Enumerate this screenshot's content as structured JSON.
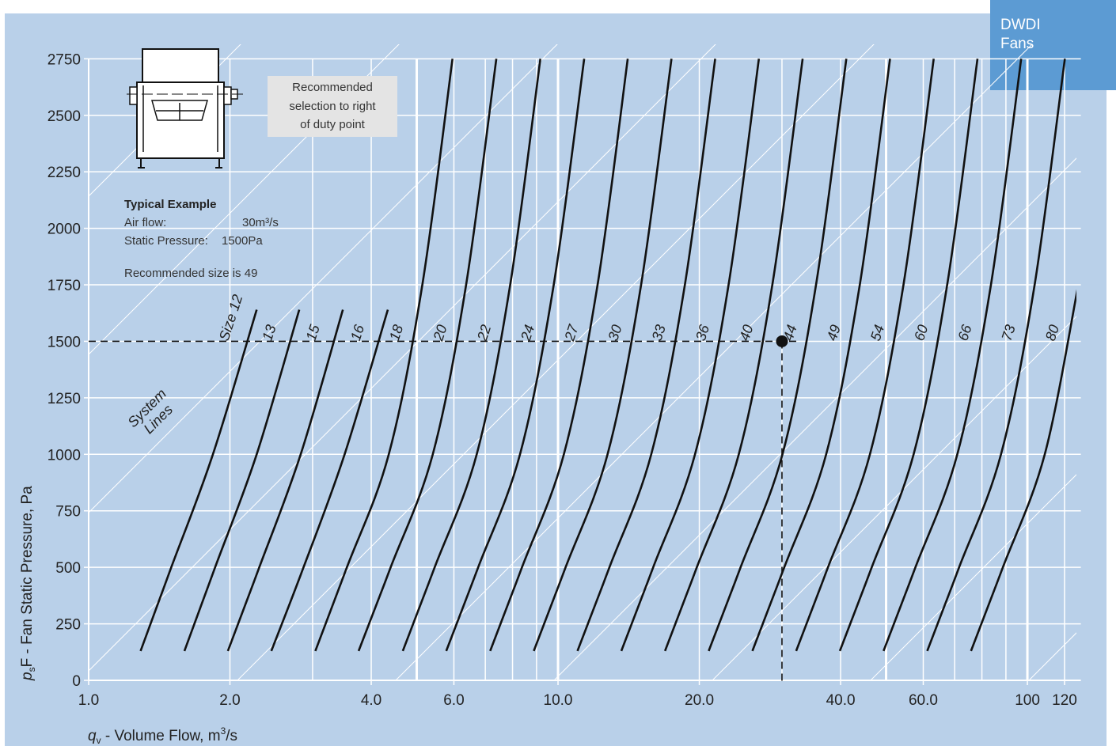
{
  "brand": {
    "line1": "DWDI",
    "line2": "Fans"
  },
  "recommend_box": {
    "line1": "Recommended",
    "line2": "selection to right",
    "line3": "of duty point"
  },
  "example": {
    "title": "Typical Example",
    "air_label": "Air flow:",
    "air_value": "30m³/s",
    "pressure_label": "Static Pressure:",
    "pressure_value": "1500Pa",
    "result": "Recommended size is 49"
  },
  "system_lines_label": {
    "line1": "System",
    "line2": "Lines"
  },
  "colors": {
    "background": "#b9d0e9",
    "grid": "#ffffff",
    "curve": "#111111",
    "badge": "#5c9bd3"
  },
  "chart_data": {
    "type": "line",
    "xlabel_prefix": "q",
    "xlabel_sub": "v",
    "xlabel_rest": " - Volume Flow, m",
    "xlabel_sup": "3",
    "xlabel_end": "/s",
    "ylabel_prefix": "p",
    "ylabel_sub": "s",
    "ylabel_rest": "F - Fan Static Pressure, Pa",
    "x_scale": "log",
    "xlim": [
      1.0,
      130
    ],
    "ylim": [
      0,
      2800
    ],
    "x_ticks": [
      {
        "v": 1.0,
        "t": "1.0"
      },
      {
        "v": 2.0,
        "t": "2.0"
      },
      {
        "v": 4.0,
        "t": "4.0"
      },
      {
        "v": 6.0,
        "t": "6.0"
      },
      {
        "v": 10.0,
        "t": "10.0"
      },
      {
        "v": 20.0,
        "t": "20.0"
      },
      {
        "v": 40.0,
        "t": "40.0"
      },
      {
        "v": 60.0,
        "t": "60.0"
      },
      {
        "v": 100,
        "t": "100"
      },
      {
        "v": 120,
        "t": "120"
      }
    ],
    "y_ticks": [
      0,
      250,
      500,
      750,
      1000,
      1250,
      1500,
      1750,
      2000,
      2250,
      2500,
      2750
    ],
    "grid": true,
    "bold_verticals": [
      5,
      10,
      50
    ],
    "duty_point": {
      "x": 30,
      "y": 1500
    },
    "series": [
      {
        "name": "Size 12",
        "points": [
          [
            1.29,
            130
          ],
          [
            1.5,
            500
          ],
          [
            1.84,
            1000
          ],
          [
            2.28,
            1640
          ]
        ]
      },
      {
        "name": "13",
        "points": [
          [
            1.6,
            130
          ],
          [
            1.86,
            500
          ],
          [
            2.28,
            1000
          ],
          [
            2.81,
            1640
          ]
        ]
      },
      {
        "name": "15",
        "points": [
          [
            1.98,
            130
          ],
          [
            2.31,
            500
          ],
          [
            2.83,
            1000
          ],
          [
            3.48,
            1640
          ]
        ]
      },
      {
        "name": "16",
        "points": [
          [
            2.45,
            130
          ],
          [
            2.87,
            500
          ],
          [
            3.51,
            1000
          ],
          [
            4.34,
            1640
          ]
        ]
      },
      {
        "name": "18",
        "points": [
          [
            3.04,
            130
          ],
          [
            3.55,
            500
          ],
          [
            4.36,
            1000
          ],
          [
            5.14,
            1750
          ],
          [
            5.96,
            2750
          ]
        ]
      },
      {
        "name": "20",
        "points": [
          [
            3.76,
            130
          ],
          [
            4.4,
            500
          ],
          [
            5.41,
            1000
          ],
          [
            6.37,
            1750
          ],
          [
            7.39,
            2750
          ]
        ]
      },
      {
        "name": "22",
        "points": [
          [
            4.67,
            130
          ],
          [
            5.46,
            500
          ],
          [
            6.71,
            1000
          ],
          [
            7.91,
            1750
          ],
          [
            9.17,
            2750
          ]
        ]
      },
      {
        "name": "24",
        "points": [
          [
            5.78,
            130
          ],
          [
            6.76,
            500
          ],
          [
            8.3,
            1000
          ],
          [
            9.79,
            1750
          ],
          [
            11.37,
            2750
          ]
        ]
      },
      {
        "name": "27",
        "points": [
          [
            7.17,
            130
          ],
          [
            8.38,
            500
          ],
          [
            10.29,
            1000
          ],
          [
            12.14,
            1750
          ],
          [
            14.08,
            2750
          ]
        ]
      },
      {
        "name": "30",
        "points": [
          [
            8.88,
            130
          ],
          [
            10.38,
            500
          ],
          [
            12.75,
            1000
          ],
          [
            15.03,
            1750
          ],
          [
            17.45,
            2750
          ]
        ]
      },
      {
        "name": "33",
        "points": [
          [
            11.0,
            130
          ],
          [
            12.87,
            500
          ],
          [
            15.8,
            1000
          ],
          [
            18.63,
            1750
          ],
          [
            21.62,
            2750
          ]
        ]
      },
      {
        "name": "36",
        "points": [
          [
            13.64,
            130
          ],
          [
            15.95,
            500
          ],
          [
            19.58,
            1000
          ],
          [
            23.09,
            1750
          ],
          [
            26.79,
            2750
          ]
        ]
      },
      {
        "name": "40",
        "points": [
          [
            16.9,
            130
          ],
          [
            19.76,
            500
          ],
          [
            24.27,
            1000
          ],
          [
            28.62,
            1750
          ],
          [
            33.2,
            2750
          ]
        ]
      },
      {
        "name": "44",
        "points": [
          [
            20.94,
            130
          ],
          [
            24.49,
            500
          ],
          [
            30.07,
            1000
          ],
          [
            35.46,
            1750
          ],
          [
            41.14,
            2750
          ]
        ]
      },
      {
        "name": "49",
        "points": [
          [
            25.95,
            130
          ],
          [
            30.34,
            500
          ],
          [
            37.26,
            1000
          ],
          [
            43.94,
            1750
          ],
          [
            50.98,
            2750
          ]
        ]
      },
      {
        "name": "54",
        "points": [
          [
            32.16,
            130
          ],
          [
            37.6,
            500
          ],
          [
            46.18,
            1000
          ],
          [
            54.45,
            1750
          ],
          [
            63.17,
            2750
          ]
        ]
      },
      {
        "name": "60",
        "points": [
          [
            39.85,
            130
          ],
          [
            46.6,
            500
          ],
          [
            57.22,
            1000
          ],
          [
            67.48,
            1750
          ],
          [
            78.29,
            2750
          ]
        ]
      },
      {
        "name": "66",
        "points": [
          [
            49.38,
            130
          ],
          [
            57.74,
            500
          ],
          [
            70.91,
            1000
          ],
          [
            83.62,
            1750
          ],
          [
            97.01,
            2750
          ]
        ]
      },
      {
        "name": "73",
        "points": [
          [
            61.19,
            130
          ],
          [
            71.55,
            500
          ],
          [
            87.87,
            1000
          ],
          [
            103.6,
            1750
          ],
          [
            120.2,
            2750
          ]
        ]
      },
      {
        "name": "80",
        "points": [
          [
            75.83,
            130
          ],
          [
            88.67,
            500
          ],
          [
            108.9,
            1000
          ],
          [
            128.4,
            1750
          ],
          [
            135.0,
            2000
          ]
        ]
      }
    ]
  }
}
